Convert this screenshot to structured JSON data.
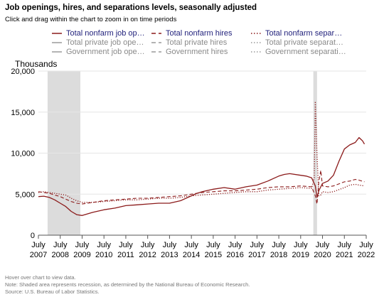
{
  "header": {
    "title": "Job openings, hires, and separations levels, seasonally adjusted",
    "subtitle": "Click and drag within the chart to zoom in on time periods"
  },
  "legend": {
    "items": [
      {
        "label": "Total nonfarm job op…",
        "color": "#8b1a1a",
        "dash": "",
        "active": true
      },
      {
        "label": "Total nonfarm hires",
        "color": "#8b1a1a",
        "dash": "6,4",
        "active": true
      },
      {
        "label": "Total nonfarm separ…",
        "color": "#8b1a1a",
        "dash": "1.5,2.5",
        "active": true
      },
      {
        "label": "Total private job ope…",
        "color": "#9a9a9a",
        "dash": "",
        "active": false
      },
      {
        "label": "Total private hires",
        "color": "#9a9a9a",
        "dash": "6,4",
        "active": false
      },
      {
        "label": "Total private separat…",
        "color": "#9a9a9a",
        "dash": "1.5,2.5",
        "active": false
      },
      {
        "label": "Government job ope…",
        "color": "#9a9a9a",
        "dash": "",
        "active": false
      },
      {
        "label": "Government hires",
        "color": "#9a9a9a",
        "dash": "6,4",
        "active": false
      },
      {
        "label": "Government separati…",
        "color": "#9a9a9a",
        "dash": "1.5,2.5",
        "active": false
      }
    ]
  },
  "chart_data": {
    "type": "line",
    "ylabel": "Thousands",
    "xlim": [
      2007.5,
      2022.5
    ],
    "ylim": [
      0,
      20000
    ],
    "y_ticks": [
      0,
      5000,
      10000,
      15000,
      20000
    ],
    "y_tick_labels": [
      "0",
      "5,000",
      "10,000",
      "15,000",
      "20,000"
    ],
    "x_ticks": [
      2007.5,
      2008.5,
      2009.5,
      2010.5,
      2011.5,
      2012.5,
      2013.5,
      2014.5,
      2015.5,
      2016.5,
      2017.5,
      2018.5,
      2019.5,
      2020.5,
      2021.5,
      2022.5
    ],
    "x_tick_labels": [
      [
        "July",
        "2007"
      ],
      [
        "July",
        "2008"
      ],
      [
        "July",
        "2009"
      ],
      [
        "July",
        "2010"
      ],
      [
        "July",
        "2011"
      ],
      [
        "July",
        "2012"
      ],
      [
        "July",
        "2013"
      ],
      [
        "July",
        "2014"
      ],
      [
        "July",
        "2015"
      ],
      [
        "July",
        "2016"
      ],
      [
        "July",
        "2017"
      ],
      [
        "July",
        "2018"
      ],
      [
        "July",
        "2019"
      ],
      [
        "July",
        "2020"
      ],
      [
        "July",
        "2021"
      ],
      [
        "July",
        "2022"
      ]
    ],
    "grid": true,
    "recessions": [
      [
        2007.92,
        2009.42
      ],
      [
        2020.08,
        2020.25
      ]
    ],
    "series": [
      {
        "name": "Total nonfarm job openings",
        "color": "#8b1a1a",
        "dash": "",
        "width": 1.3,
        "x": [
          2007.5,
          2007.75,
          2008.0,
          2008.25,
          2008.5,
          2008.75,
          2009.0,
          2009.25,
          2009.5,
          2009.75,
          2010.0,
          2010.5,
          2011.0,
          2011.5,
          2012.0,
          2012.5,
          2013.0,
          2013.5,
          2014.0,
          2014.5,
          2014.75,
          2015.0,
          2015.5,
          2016.0,
          2016.5,
          2017.0,
          2017.5,
          2018.0,
          2018.5,
          2018.75,
          2019.0,
          2019.5,
          2019.75,
          2020.0,
          2020.17,
          2020.25,
          2020.33,
          2020.42,
          2020.5,
          2020.75,
          2021.0,
          2021.25,
          2021.5,
          2021.75,
          2022.0,
          2022.17,
          2022.33,
          2022.42
        ],
        "y": [
          4700,
          4750,
          4600,
          4300,
          3900,
          3500,
          2900,
          2500,
          2400,
          2600,
          2800,
          3100,
          3300,
          3600,
          3700,
          3800,
          3900,
          3900,
          4200,
          4800,
          5100,
          5300,
          5600,
          5800,
          5600,
          5900,
          6100,
          6600,
          7200,
          7400,
          7500,
          7300,
          7200,
          7000,
          6000,
          4600,
          5400,
          5900,
          6300,
          6600,
          7300,
          9000,
          10500,
          11000,
          11300,
          11900,
          11500,
          11100
        ]
      },
      {
        "name": "Total nonfarm hires",
        "color": "#8b1a1a",
        "dash": "5,3",
        "width": 1.1,
        "x": [
          2007.5,
          2007.75,
          2008.0,
          2008.25,
          2008.5,
          2008.75,
          2009.0,
          2009.25,
          2009.5,
          2010.0,
          2010.5,
          2011.0,
          2011.5,
          2012.0,
          2012.5,
          2013.0,
          2013.5,
          2014.0,
          2014.5,
          2015.0,
          2015.5,
          2016.0,
          2016.5,
          2017.0,
          2017.5,
          2018.0,
          2018.5,
          2019.0,
          2019.5,
          2020.0,
          2020.17,
          2020.25,
          2020.33,
          2020.42,
          2020.5,
          2020.75,
          2021.0,
          2021.5,
          2021.75,
          2022.0,
          2022.17,
          2022.42
        ],
        "y": [
          5300,
          5200,
          5100,
          4900,
          4700,
          4400,
          4100,
          3900,
          3800,
          4000,
          4200,
          4300,
          4400,
          4500,
          4500,
          4600,
          4700,
          4800,
          5000,
          5200,
          5300,
          5400,
          5400,
          5500,
          5600,
          5800,
          5900,
          5900,
          6000,
          5900,
          4800,
          3800,
          6500,
          7900,
          6000,
          5900,
          6000,
          6500,
          6600,
          6800,
          6700,
          6500
        ]
      },
      {
        "name": "Total nonfarm separations",
        "color": "#8b1a1a",
        "dash": "1.2,2",
        "width": 1.3,
        "x": [
          2007.5,
          2007.75,
          2008.0,
          2008.25,
          2008.5,
          2008.75,
          2009.0,
          2009.25,
          2009.5,
          2010.0,
          2010.5,
          2011.0,
          2011.5,
          2012.0,
          2012.5,
          2013.0,
          2013.5,
          2014.0,
          2014.5,
          2015.0,
          2015.5,
          2016.0,
          2016.5,
          2017.0,
          2017.5,
          2018.0,
          2018.5,
          2019.0,
          2019.5,
          2020.0,
          2020.12,
          2020.17,
          2020.25,
          2020.33,
          2020.42,
          2020.5,
          2020.75,
          2021.0,
          2021.5,
          2021.75,
          2022.0,
          2022.17,
          2022.42
        ],
        "y": [
          5200,
          5300,
          5200,
          5100,
          5000,
          4900,
          4500,
          4200,
          4000,
          4000,
          4100,
          4200,
          4300,
          4300,
          4400,
          4500,
          4500,
          4600,
          4800,
          4900,
          5000,
          5100,
          5200,
          5300,
          5300,
          5500,
          5600,
          5700,
          5800,
          5700,
          7000,
          16300,
          9800,
          4800,
          4900,
          5300,
          5200,
          5300,
          5800,
          6100,
          6200,
          6100,
          6000
        ]
      }
    ]
  },
  "footnotes": {
    "hover": "Hover over chart to view data.",
    "note": "Note: Shaded area represents recession, as determined by the National Bureau of Economic Research.",
    "source": "Source: U.S. Bureau of Labor Statistics."
  }
}
